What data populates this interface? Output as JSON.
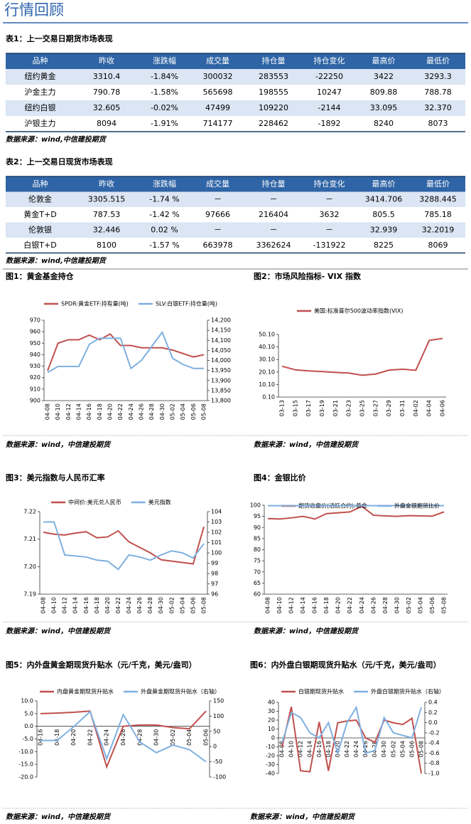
{
  "header": {
    "title": "行情回顾"
  },
  "table1": {
    "title": "表1：上一交易日期货市场表现",
    "columns": [
      "品种",
      "昨收",
      "涨跌幅",
      "成交量",
      "持仓量",
      "持仓变化",
      "最高价",
      "最低价"
    ],
    "rows": [
      [
        "纽约黄金",
        "3310.4",
        "-1.84%",
        "300032",
        "283553",
        "-22250",
        "3422",
        "3293.3"
      ],
      [
        "沪金主力",
        "790.78",
        "-1.58%",
        "565698",
        "198555",
        "10247",
        "809.88",
        "788.78"
      ],
      [
        "纽约白银",
        "32.605",
        "-0.02%",
        "47499",
        "109220",
        "-2144",
        "33.095",
        "32.370"
      ],
      [
        "沪银主力",
        "8094",
        "-1.91%",
        "714177",
        "228462",
        "-1892",
        "8240",
        "8073"
      ]
    ],
    "source": "数据来源：wind,中信建投期货"
  },
  "table2": {
    "title": "表2：上一交易日现货市场表现",
    "columns": [
      "品种",
      "昨收",
      "涨跌幅",
      "成交量",
      "持仓量",
      "持仓变化",
      "最高价",
      "最低价"
    ],
    "rows": [
      [
        "伦敦金",
        "3305.515",
        "-1.74 %",
        "－",
        "－",
        "－",
        "3414.706",
        "3288.445"
      ],
      [
        "黄金T+D",
        "787.53",
        "-1.42 %",
        "97666",
        "216404",
        "3632",
        "805.5",
        "785.18"
      ],
      [
        "伦敦银",
        "32.446",
        "0.02 %",
        "－",
        "－",
        "－",
        "32.939",
        "32.2019"
      ],
      [
        "白银T+D",
        "8100",
        "-1.57 %",
        "663978",
        "3362624",
        "-131922",
        "8225",
        "8069"
      ]
    ],
    "source": "数据来源：wind,中信建投期货"
  },
  "chart_data": [
    {
      "type": "line",
      "title": "图1：黄金基金持仓",
      "source": "数据来源：wind，中信建投期货",
      "categories": [
        "04-08",
        "04-10",
        "04-12",
        "04-14",
        "04-16",
        "04-18",
        "04-20",
        "04-22",
        "04-24",
        "04-26",
        "04-28",
        "04-30",
        "05-02",
        "05-04",
        "05-06",
        "05-08"
      ],
      "ylim": [
        900,
        970
      ],
      "yticks": [
        900,
        910,
        920,
        930,
        940,
        950,
        960,
        970
      ],
      "y2lim": [
        13800,
        14200
      ],
      "y2ticks": [
        {
          "value": 13800,
          "label": "13,800"
        },
        {
          "value": 13850,
          "label": "13,850"
        },
        {
          "value": 13900,
          "label": "13,900"
        },
        {
          "value": 13950,
          "label": "13,950"
        },
        {
          "value": 14000,
          "label": "14,000"
        },
        {
          "value": 14050,
          "label": "14,050"
        },
        {
          "value": 14100,
          "label": "14,100"
        },
        {
          "value": 14150,
          "label": "14,150"
        },
        {
          "value": 14200,
          "label": "14,200"
        }
      ],
      "series": [
        {
          "name": "SPDR:黄金ETF:持有量(吨)",
          "color": "#c0504d",
          "values": [
            926,
            950,
            953,
            953,
            957,
            953,
            958,
            948,
            948,
            946,
            946,
            946,
            944,
            941,
            938,
            940
          ]
        },
        {
          "name": "SLV:白银ETF:持仓量(吨)",
          "color": "#7fb0e0",
          "axis": "y2",
          "values": [
            13940,
            13970,
            13970,
            13970,
            14080,
            14110,
            14110,
            14110,
            13960,
            14000,
            14070,
            14140,
            14010,
            13980,
            13960,
            13960
          ]
        }
      ]
    },
    {
      "type": "line",
      "title": "图2：市场风险指标- VIX 指数",
      "source": "数据来源：wind，中信建投期货",
      "categories": [
        "03-13",
        "03-15",
        "03-17",
        "03-19",
        "03-21",
        "03-23",
        "03-25",
        "03-27",
        "03-29",
        "03-31",
        "04-02",
        "04-04",
        "04-06"
      ],
      "ylim": [
        0.1,
        50.1
      ],
      "yticks": [
        {
          "value": 0.1,
          "label": "0.10"
        },
        {
          "value": 10.1,
          "label": "10.10"
        },
        {
          "value": 20.1,
          "label": "20.10"
        },
        {
          "value": 30.1,
          "label": "30.10"
        },
        {
          "value": 40.1,
          "label": "40.10"
        },
        {
          "value": 50.1,
          "label": "50.10"
        }
      ],
      "series": [
        {
          "name": "美国:标准普尔500波动率指数(VIX)",
          "color": "#c0504d",
          "values": [
            24.7,
            21.8,
            21,
            20.5,
            19.8,
            19.3,
            17.5,
            18.5,
            21.6,
            22.3,
            21.5,
            45.3,
            46.9
          ]
        }
      ]
    },
    {
      "type": "line",
      "title": "图3：美元指数与人民币汇率",
      "source": "数据来源：wind，中信建投期货",
      "categories": [
        "04-08",
        "04-10",
        "04-12",
        "04-14",
        "04-16",
        "04-18",
        "04-20",
        "04-22",
        "04-24",
        "04-26",
        "04-28",
        "04-30",
        "05-02",
        "05-04",
        "05-06",
        "05-08"
      ],
      "ylim": [
        7.19,
        7.22
      ],
      "yticks": [
        7.19,
        {
          "value": 7.2,
          "label": "7.20"
        },
        7.21,
        7.22
      ],
      "y2lim": [
        96,
        104
      ],
      "y2ticks": [
        96,
        97,
        98,
        99,
        100,
        101,
        102,
        103,
        104
      ],
      "series": [
        {
          "name": "中间价:美元兑人民币",
          "color": "#c0504d",
          "values": [
            7.2125,
            7.2118,
            7.2115,
            7.2122,
            7.2127,
            7.2105,
            7.2108,
            7.213,
            7.209,
            7.207,
            7.205,
            7.2025,
            7.202,
            7.2015,
            7.201,
            7.2145
          ]
        },
        {
          "name": "美元指数",
          "color": "#7fb0e0",
          "axis": "y2",
          "values": [
            103,
            103,
            99.8,
            99.7,
            99.6,
            99.3,
            99.2,
            98.4,
            99.8,
            99.6,
            99.3,
            99.8,
            100.2,
            100,
            99.5,
            100.9
          ]
        }
      ]
    },
    {
      "type": "line",
      "title": "图4：金银比价",
      "source": "数据来源：wind，中信建投期货",
      "categories": [
        "04-08",
        "04-10",
        "04-12",
        "04-14",
        "04-16",
        "04-18",
        "04-20",
        "04-22",
        "04-24",
        "04-26",
        "04-28",
        "04-30",
        "05-02",
        "05-04",
        "05-06",
        "05-08"
      ],
      "ylim": [
        60,
        100
      ],
      "yticks": [
        60,
        65,
        70,
        75,
        80,
        85,
        90,
        95,
        100
      ],
      "series": [
        {
          "name": "期货收盘价(活跃合约):黄金",
          "color": "#c0504d",
          "values": [
            94,
            93.8,
            94.3,
            95,
            93.8,
            96.2,
            96.6,
            97,
            99.5,
            95.5,
            95.2,
            95,
            95.3,
            95.2,
            95.1,
            97
          ]
        },
        {
          "name": "外盘金银期货比价",
          "color": "#7fb0e0",
          "values": [
            99.8,
            99.8,
            99.8,
            99.8,
            99.8,
            99.8,
            99.8,
            99.8,
            99.8,
            99.8,
            99.8,
            99.8,
            99.8,
            99.8,
            99.8,
            99.8
          ]
        }
      ]
    },
    {
      "type": "line",
      "title": "图5：内外盘黄金期现货升贴水（元/千克，美元/盎司）",
      "source": "数据来源：wind，中信建投期货",
      "categories": [
        "04-16",
        "04-18",
        "04-20",
        "04-22",
        "04-24",
        "04-26",
        "04-28",
        "04-30",
        "05-02",
        "05-04",
        "05-06"
      ],
      "ylim": [
        -20,
        10
      ],
      "yticks": [
        {
          "value": -20,
          "label": "-20.0"
        },
        {
          "value": -15,
          "label": "-15.0"
        },
        {
          "value": -10,
          "label": "-10.0"
        },
        {
          "value": -5,
          "label": "-5.0"
        },
        {
          "value": 0,
          "label": "0.0"
        },
        {
          "value": 5,
          "label": "5.0"
        },
        {
          "value": 10,
          "label": "10.0"
        }
      ],
      "y2lim": [
        -100,
        150
      ],
      "y2ticks": [
        -100,
        -50,
        0,
        50,
        100,
        150
      ],
      "series": [
        {
          "name": "内盘黄金期现货升贴水",
          "color": "#c0504d",
          "values": [
            5,
            5.2,
            5.5,
            6,
            -16,
            0,
            0.5,
            0.5,
            -0.5,
            -1,
            6
          ]
        },
        {
          "name": "外盘黄金期现货升贴水（右轴）",
          "color": "#7fb0e0",
          "axis": "y2",
          "values": [
            20,
            20,
            65,
            115,
            -40,
            105,
            15,
            -20,
            5,
            -10,
            -50
          ]
        }
      ]
    },
    {
      "type": "line",
      "title": "图6：内外盘白银期现货升贴水（元/千克，美元/盎司）",
      "source": "数据来源：wind，中信建投期货",
      "categories": [
        "04-08",
        "04-10",
        "04-12",
        "04-14",
        "04-16",
        "04-18",
        "04-20",
        "04-22",
        "04-24",
        "04-26",
        "04-28",
        "04-30",
        "05-02",
        "05-04",
        "05-06",
        "05-08"
      ],
      "ylim": [
        -40,
        40
      ],
      "yticks": [
        -40,
        -30,
        -20,
        -10,
        0,
        10,
        20,
        30,
        40
      ],
      "y2lim": [
        -1,
        0.4
      ],
      "y2ticks": [
        {
          "value": -1,
          "label": "-1.0"
        },
        -0.8,
        -0.6,
        -0.4,
        -0.2,
        {
          "value": 0,
          "label": "0.0"
        },
        0.2,
        0.4
      ],
      "series": [
        {
          "name": "白银期现货升贴水",
          "color": "#c0504d",
          "values": [
            -10,
            35,
            -37,
            -38,
            18,
            -37,
            17,
            19,
            20,
            0,
            -5,
            20,
            17,
            15,
            22,
            -40
          ]
        },
        {
          "name": "外盘白银期货升贴水（右轴）",
          "color": "#7fb0e0",
          "axis": "y2",
          "values": [
            -0.4,
            0.2,
            0.1,
            -0.2,
            -0.3,
            0,
            -0.6,
            0,
            0.3,
            -0.6,
            -0.55,
            0.1,
            -0.2,
            -0.25,
            -0.3,
            0.3
          ]
        }
      ]
    }
  ]
}
